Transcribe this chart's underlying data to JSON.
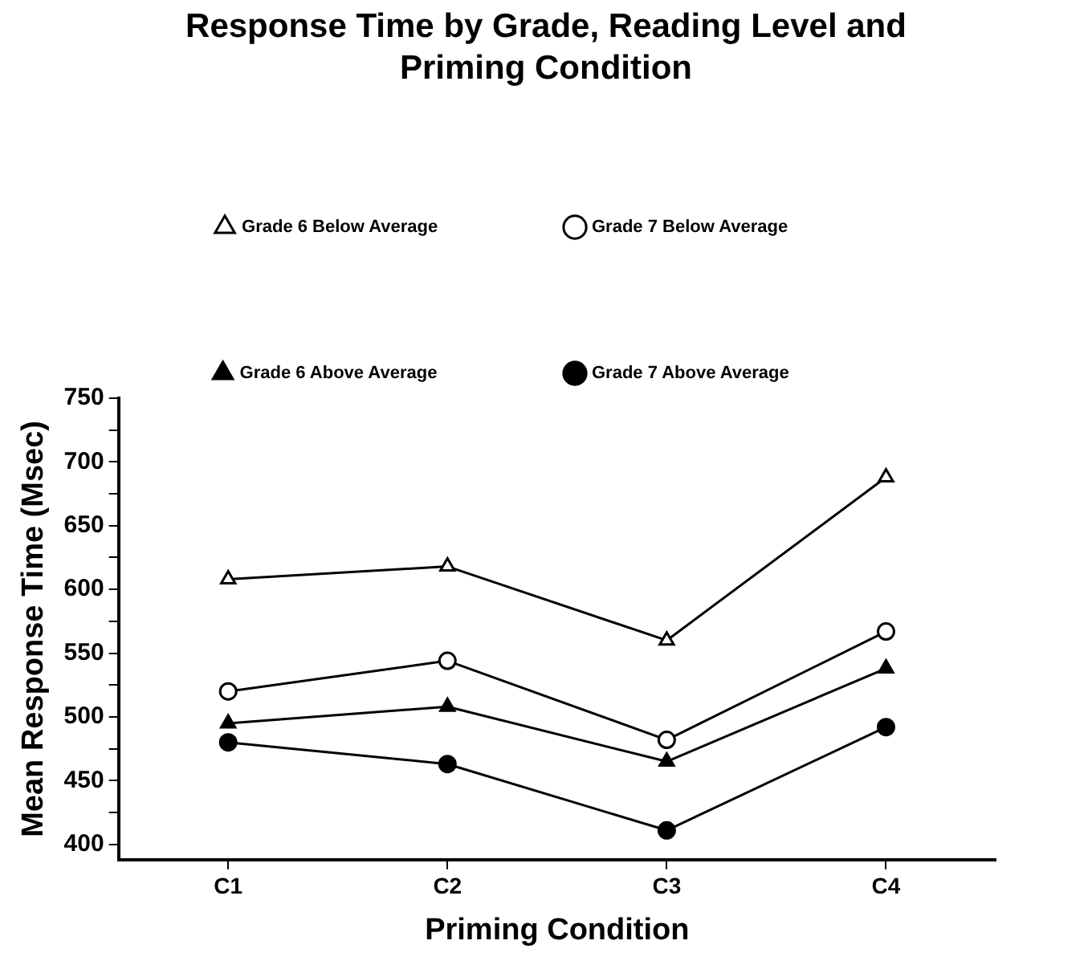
{
  "chart_data": {
    "type": "line",
    "title": "Response Time by Grade, Reading Level and Priming Condition",
    "xlabel": "Priming Condition",
    "ylabel": "Mean Response Time (Msec)",
    "categories": [
      "C1",
      "C2",
      "C3",
      "C4"
    ],
    "series": [
      {
        "name": "Grade 6 Below Average",
        "color": "#000000",
        "marker": "triangle",
        "values": [
          608,
          618,
          560,
          688
        ]
      },
      {
        "name": "Grade 7 Below Average",
        "color": "#000000",
        "marker": "circle",
        "values": [
          520,
          544,
          482,
          567
        ]
      },
      {
        "name": "Grade 6 Above Average",
        "color": "#000000",
        "marker": "triangle",
        "values": [
          495,
          508,
          465,
          538
        ]
      },
      {
        "name": "Grade 7 Above Average",
        "color": "#000000",
        "marker": "circle",
        "values": [
          480,
          463,
          411,
          492
        ]
      }
    ],
    "ylim": [
      388,
      750
    ],
    "yticks": [
      400,
      {
        "value": 425,
        "label": null
      },
      450,
      {
        "value": 475,
        "label": null
      },
      500,
      {
        "value": 525,
        "label": null
      },
      550,
      {
        "value": 575,
        "label": null
      },
      600,
      {
        "value": 625,
        "label": null
      },
      650,
      {
        "value": 675,
        "label": null
      },
      700,
      {
        "value": 725,
        "label": null
      },
      750
    ],
    "grid": false,
    "legend": "top",
    "line_style": "solid"
  }
}
